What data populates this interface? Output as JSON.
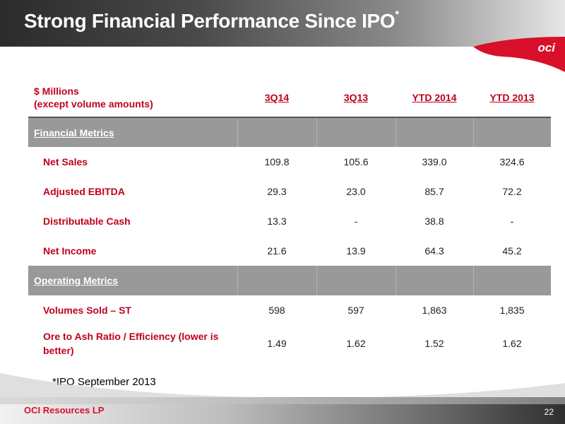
{
  "slide": {
    "title": "Strong Financial Performance Since IPO",
    "title_marker": "*",
    "logo_text": "oci",
    "footnote": "*IPO September 2013",
    "footer_company": "OCI Resources LP",
    "page_number": "22"
  },
  "table": {
    "header_label_line1": "$ Millions",
    "header_label_line2": "(except volume amounts)",
    "columns": [
      "3Q14",
      "3Q13",
      "YTD 2014",
      "YTD 2013"
    ],
    "sections": [
      {
        "title": "Financial Metrics",
        "rows": [
          {
            "label": "Net Sales",
            "values": [
              "109.8",
              "105.6",
              "339.0",
              "324.6"
            ]
          },
          {
            "label": "Adjusted EBITDA",
            "values": [
              "29.3",
              "23.0",
              "85.7",
              "72.2"
            ]
          },
          {
            "label": "Distributable Cash",
            "values": [
              "13.3",
              "-",
              "38.8",
              "-"
            ]
          },
          {
            "label": "Net Income",
            "values": [
              "21.6",
              "13.9",
              "64.3",
              "45.2"
            ]
          }
        ]
      },
      {
        "title": "Operating Metrics",
        "rows": [
          {
            "label": "Volumes Sold – ST",
            "values": [
              "598",
              "597",
              "1,863",
              "1,835"
            ]
          },
          {
            "label": "Ore to Ash Ratio / Efficiency (lower is better)",
            "values": [
              "1.49",
              "1.62",
              "1.52",
              "1.62"
            ]
          }
        ]
      }
    ]
  },
  "colors": {
    "accent_red": "#c0001d",
    "section_gray": "#999999"
  }
}
